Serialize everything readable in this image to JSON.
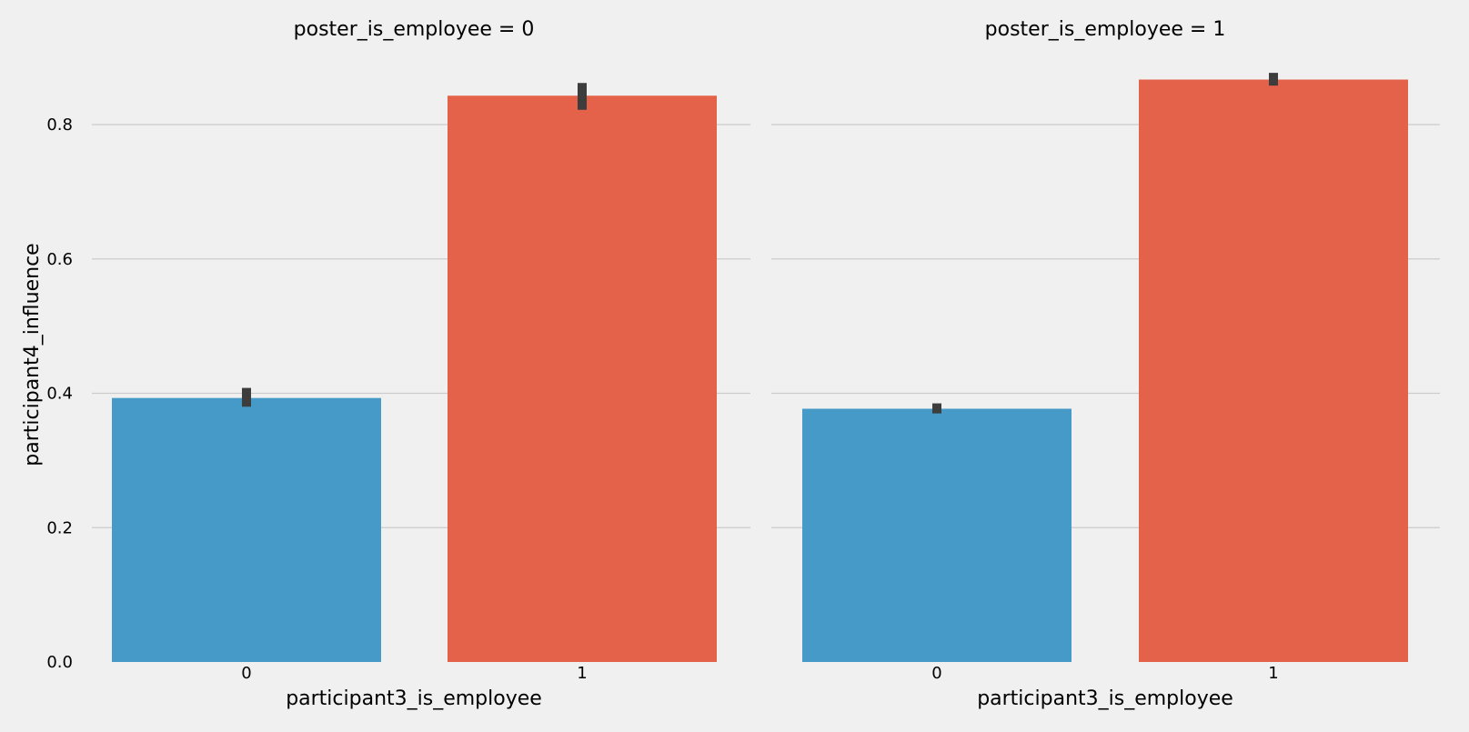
{
  "chart_data": {
    "type": "bar",
    "ylabel": "participant4_influence",
    "ylim": [
      0,
      0.9
    ],
    "yticks": [
      "0.0",
      "0.2",
      "0.4",
      "0.6",
      "0.8"
    ],
    "grid": "horizontal",
    "colors": {
      "0": "#459ac8",
      "1": "#e5624a",
      "errorbar": "#3d3d3d",
      "grid": "#cbcbcb",
      "background": "#f0f0f0"
    },
    "panels": [
      {
        "title": "poster_is_employee = 0",
        "xlabel": "participant3_is_employee",
        "categories": [
          "0",
          "1"
        ],
        "values": [
          0.393,
          0.843
        ],
        "ci": [
          [
            0.38,
            0.408
          ],
          [
            0.822,
            0.862
          ]
        ]
      },
      {
        "title": "poster_is_employee = 1",
        "xlabel": "participant3_is_employee",
        "categories": [
          "0",
          "1"
        ],
        "values": [
          0.377,
          0.867
        ],
        "ci": [
          [
            0.37,
            0.385
          ],
          [
            0.858,
            0.877
          ]
        ]
      }
    ]
  }
}
